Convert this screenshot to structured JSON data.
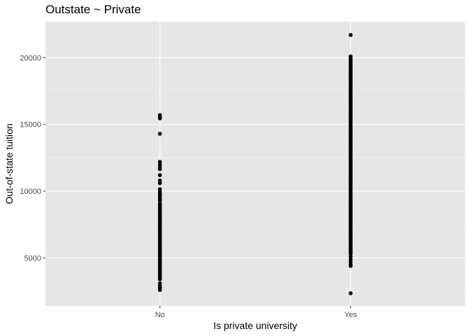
{
  "chart_data": {
    "type": "scatter",
    "title": "Outstate ~ Private",
    "xlabel": "Is private university",
    "ylabel": "Out-of-state tuition",
    "categories": [
      "No",
      "Yes"
    ],
    "yticks": [
      5000,
      10000,
      15000,
      20000
    ],
    "ylim": [
      1405,
      22695
    ],
    "grid": true,
    "colors": {
      "panel": "#e6e6e6",
      "grid_major": "#ffffff",
      "grid_minor": "#f2f2f2",
      "point": "#000000",
      "tick": "#4d4d4d"
    },
    "series": [
      {
        "category": "No",
        "values": [
          15700,
          15550,
          15450,
          14300,
          12200,
          12000,
          11800,
          11650,
          11200,
          10800,
          10600,
          10150,
          9950,
          9800,
          9700,
          9600,
          9450,
          9350,
          9300,
          9100,
          9000,
          8900,
          8800,
          8700,
          8600,
          8500,
          8400,
          8300,
          8200,
          8100,
          8000,
          7900,
          7800,
          7700,
          7600,
          7500,
          7400,
          7300,
          7200,
          7100,
          7000,
          6900,
          6800,
          6700,
          6600,
          6500,
          6400,
          6300,
          6200,
          6100,
          6000,
          5900,
          5800,
          5700,
          5600,
          5500,
          5400,
          5300,
          5200,
          5100,
          5000,
          4900,
          4800,
          4700,
          4600,
          4500,
          4400,
          4300,
          4200,
          4100,
          4000,
          3900,
          3800,
          3700,
          3600,
          3500,
          3400,
          3100,
          2900,
          2750,
          2600
        ]
      },
      {
        "category": "Yes",
        "values": [
          21700,
          20100,
          20000,
          19900,
          19800,
          19700,
          19600,
          19500,
          19400,
          19300,
          19200,
          19100,
          19000,
          18900,
          18800,
          18700,
          18600,
          18500,
          18400,
          18300,
          18200,
          18100,
          18000,
          17900,
          17800,
          17700,
          17600,
          17500,
          17400,
          17300,
          17200,
          17100,
          17000,
          16900,
          16800,
          16700,
          16600,
          16500,
          16400,
          16300,
          16200,
          16100,
          16000,
          15900,
          15800,
          15700,
          15600,
          15500,
          15400,
          15300,
          15200,
          15100,
          15000,
          14900,
          14800,
          14700,
          14600,
          14500,
          14400,
          14300,
          14200,
          14100,
          14000,
          13900,
          13800,
          13700,
          13600,
          13500,
          13400,
          13300,
          13200,
          13100,
          13000,
          12900,
          12800,
          12700,
          12600,
          12500,
          12400,
          12300,
          12200,
          12100,
          12000,
          11900,
          11800,
          11700,
          11600,
          11500,
          11400,
          11300,
          11200,
          11100,
          11000,
          10900,
          10800,
          10700,
          10600,
          10500,
          10400,
          10300,
          10200,
          10100,
          10000,
          9900,
          9800,
          9700,
          9600,
          9500,
          9400,
          9300,
          9200,
          9100,
          9000,
          8900,
          8800,
          8700,
          8600,
          8500,
          8400,
          8300,
          8200,
          8100,
          8000,
          7900,
          7800,
          7700,
          7600,
          7500,
          7400,
          7300,
          7200,
          7100,
          7000,
          6900,
          6800,
          6700,
          6600,
          6500,
          6400,
          6300,
          6200,
          6100,
          6000,
          5900,
          5800,
          5700,
          5600,
          5500,
          5400,
          5300,
          5100,
          4900,
          4700,
          4500,
          4400,
          2350
        ]
      }
    ]
  }
}
